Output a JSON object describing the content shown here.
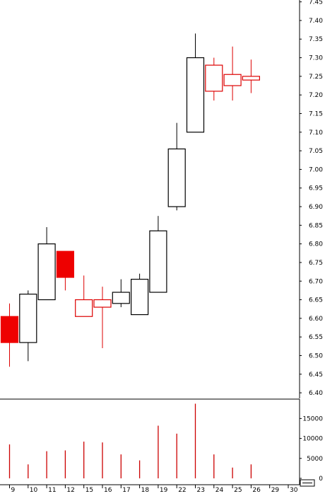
{
  "chart_data": {
    "type": "candlestick",
    "colors": {
      "up": "#000000",
      "down": "#dd0000",
      "volume": "#cc0000",
      "down_fill": "#ee0000"
    },
    "x_labels": [
      "9",
      "10",
      "11",
      "12",
      "15",
      "16",
      "17",
      "18",
      "19",
      "22",
      "23",
      "24",
      "25",
      "26",
      "29",
      "30"
    ],
    "price_ticks": [
      "7.45",
      "7.40",
      "7.35",
      "7.30",
      "7.25",
      "7.20",
      "7.15",
      "7.10",
      "7.05",
      "7.00",
      "6.95",
      "6.90",
      "6.85",
      "6.80",
      "6.75",
      "6.70",
      "6.65",
      "6.60",
      "6.55",
      "6.50",
      "6.45",
      "6.40"
    ],
    "volume_ticks": [
      "15000",
      "10000",
      "5000",
      "0"
    ],
    "price_range": [
      6.385,
      7.455
    ],
    "volume_range": [
      0,
      19500
    ],
    "candles": [
      {
        "date": "9",
        "open": 6.605,
        "high": 6.64,
        "low": 6.47,
        "close": 6.535,
        "volume": 8500,
        "style": "filled-down"
      },
      {
        "date": "10",
        "open": 6.535,
        "high": 6.675,
        "low": 6.485,
        "close": 6.665,
        "volume": 3500,
        "style": "hollow-up"
      },
      {
        "date": "11",
        "open": 6.65,
        "high": 6.845,
        "low": 6.65,
        "close": 6.8,
        "volume": 6800,
        "style": "hollow-up"
      },
      {
        "date": "12",
        "open": 6.78,
        "high": 6.78,
        "low": 6.675,
        "close": 6.71,
        "volume": 7000,
        "style": "filled-down"
      },
      {
        "date": "15",
        "open": 6.605,
        "high": 6.715,
        "low": 6.605,
        "close": 6.65,
        "volume": 9200,
        "style": "hollow-down"
      },
      {
        "date": "16",
        "open": 6.63,
        "high": 6.685,
        "low": 6.52,
        "close": 6.65,
        "volume": 9000,
        "style": "hollow-down"
      },
      {
        "date": "17",
        "open": 6.64,
        "high": 6.705,
        "low": 6.63,
        "close": 6.67,
        "volume": 6000,
        "style": "hollow-up"
      },
      {
        "date": "18",
        "open": 6.61,
        "high": 6.72,
        "low": 6.61,
        "close": 6.705,
        "volume": 4500,
        "style": "hollow-up"
      },
      {
        "date": "19",
        "open": 6.67,
        "high": 6.875,
        "low": 6.67,
        "close": 6.835,
        "volume": 13200,
        "style": "hollow-up"
      },
      {
        "date": "22",
        "open": 6.9,
        "high": 7.125,
        "low": 6.89,
        "close": 7.055,
        "volume": 11200,
        "style": "hollow-up"
      },
      {
        "date": "23",
        "open": 7.1,
        "high": 7.365,
        "low": 7.1,
        "close": 7.3,
        "volume": 18700,
        "style": "hollow-up"
      },
      {
        "date": "24",
        "open": 7.28,
        "high": 7.3,
        "low": 7.185,
        "close": 7.21,
        "volume": 6000,
        "style": "hollow-down"
      },
      {
        "date": "25",
        "open": 7.255,
        "high": 7.33,
        "low": 7.185,
        "close": 7.225,
        "volume": 2700,
        "style": "hollow-down"
      },
      {
        "date": "26",
        "open": 7.25,
        "high": 7.295,
        "low": 7.205,
        "close": 7.24,
        "volume": 3500,
        "style": "hollow-down"
      }
    ]
  }
}
